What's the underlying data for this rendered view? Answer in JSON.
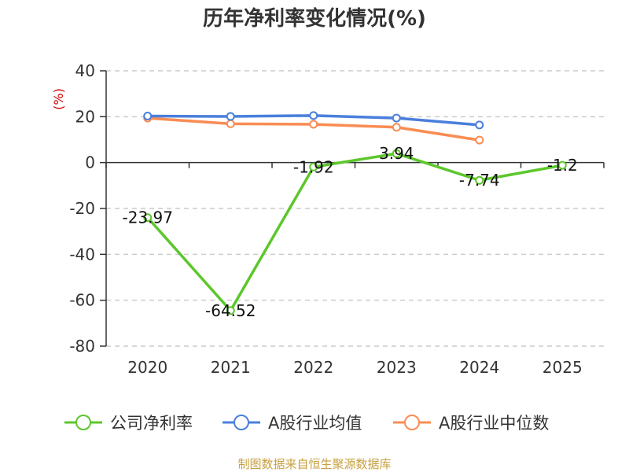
{
  "chart_data": {
    "type": "line",
    "title": "历年净利率变化情况(%)",
    "y_unit": "(%)",
    "categories": [
      "2020",
      "2021",
      "2022",
      "2023",
      "2024",
      "2025"
    ],
    "ylim": [
      -80,
      40
    ],
    "yticks": [
      40,
      20,
      0,
      -20,
      -40,
      -60,
      -80
    ],
    "grid": true,
    "legend_position": "bottom",
    "series": [
      {
        "name": "公司净利率",
        "color": "#5cc72b",
        "values": [
          -23.97,
          -64.52,
          -1.92,
          3.94,
          -7.74,
          -1.2
        ],
        "labels": [
          "-23.97",
          "-64.52",
          "-1.92",
          "3.94",
          "-7.74",
          "-1.2"
        ]
      },
      {
        "name": "A股行业均值",
        "color": "#4a7fdc",
        "values": [
          20.3,
          20.1,
          20.5,
          19.4,
          16.4,
          null
        ]
      },
      {
        "name": "A股行业中位数",
        "color": "#f98c53",
        "values": [
          19.4,
          16.9,
          16.7,
          15.4,
          9.8,
          null
        ]
      }
    ]
  },
  "source_text": "制图数据来自恒生聚源数据库",
  "colors": {
    "unit_label": "#d00000",
    "source_text": "#c8a040",
    "grid": "#cccccc",
    "axis": "#333333"
  }
}
